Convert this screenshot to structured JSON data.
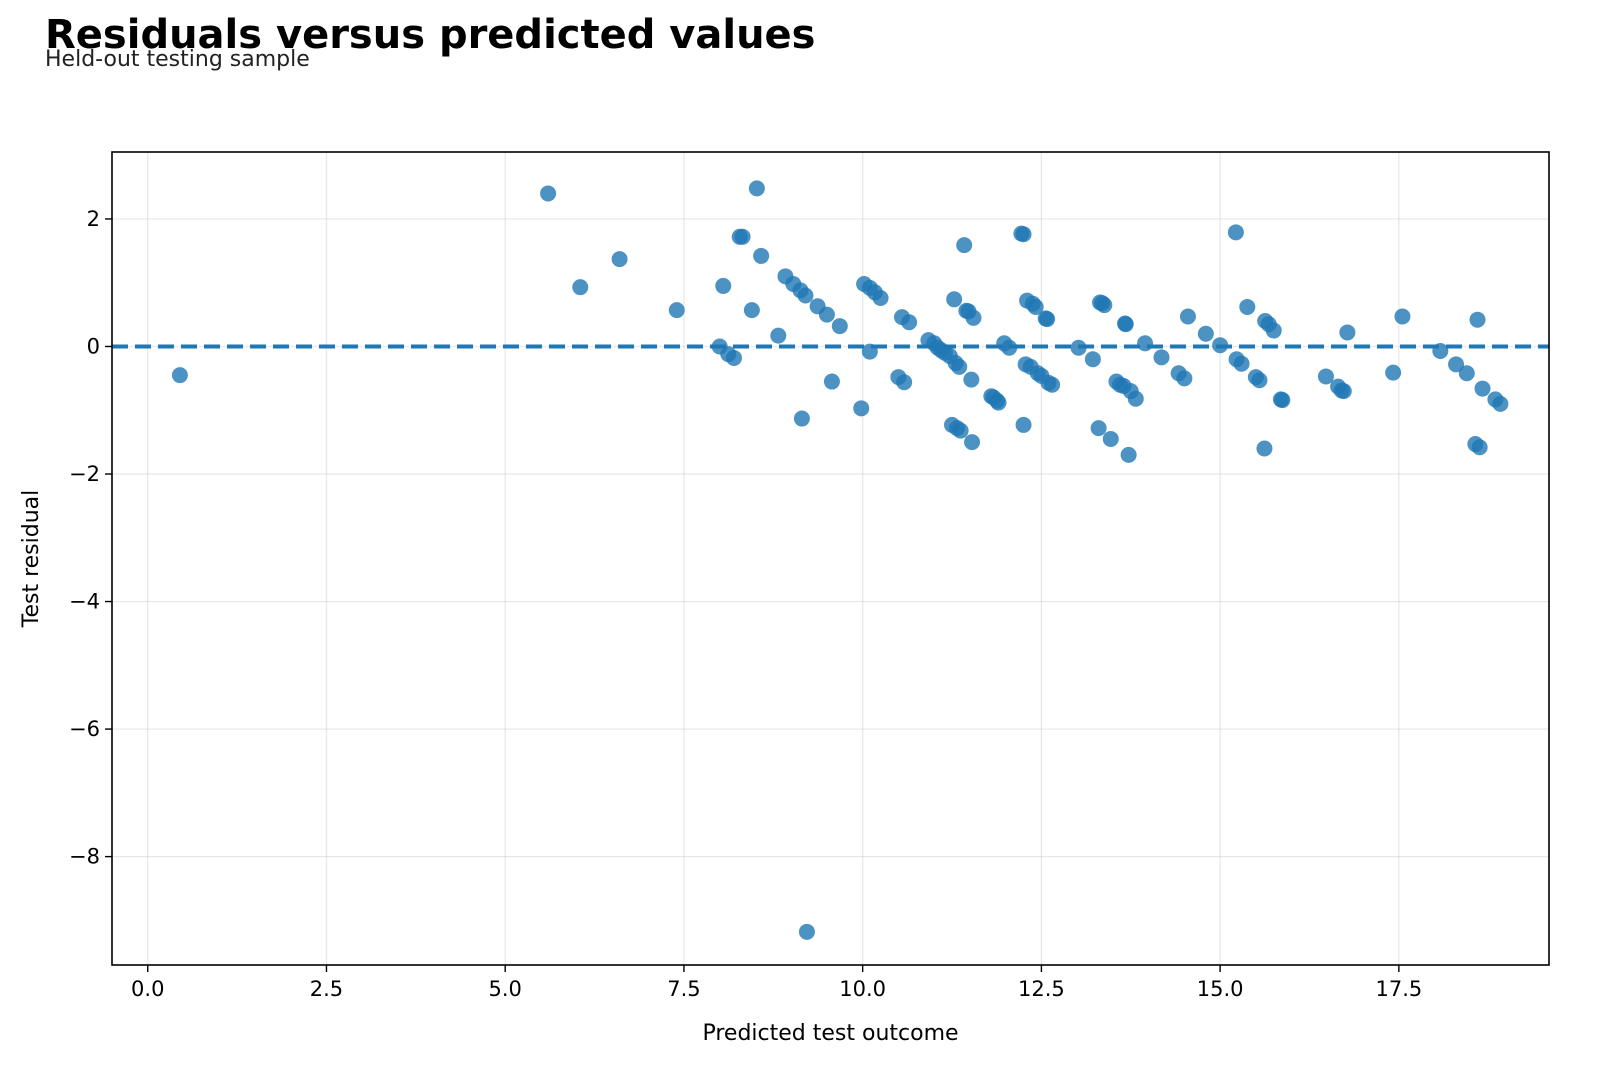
{
  "chart_data": {
    "type": "scatter",
    "title": "Residuals versus predicted values",
    "subtitle": "Held-out testing sample",
    "xlabel": "Predicted test outcome",
    "ylabel": "Test residual",
    "xlim": [
      -0.5,
      19.6
    ],
    "ylim": [
      -9.7,
      3.05
    ],
    "xticks": [
      0.0,
      2.5,
      5.0,
      7.5,
      10.0,
      12.5,
      15.0,
      17.5
    ],
    "xtick_labels": [
      "0.0",
      "2.5",
      "5.0",
      "7.5",
      "10.0",
      "12.5",
      "15.0",
      "17.5"
    ],
    "yticks": [
      -8,
      -6,
      -4,
      -2,
      0,
      2
    ],
    "ytick_labels": [
      "−8",
      "−6",
      "−4",
      "−2",
      "0",
      "2"
    ],
    "grid": true,
    "reference_line": {
      "y": 0,
      "style": "dashed"
    },
    "colors": {
      "points": "#1f77b4",
      "reference_line": "#1f77b4"
    },
    "points": [
      [
        0.45,
        -0.45
      ],
      [
        5.6,
        2.4
      ],
      [
        6.05,
        0.93
      ],
      [
        6.6,
        1.37
      ],
      [
        7.4,
        0.57
      ],
      [
        8.0,
        0.0
      ],
      [
        8.05,
        0.95
      ],
      [
        8.12,
        -0.12
      ],
      [
        8.2,
        -0.18
      ],
      [
        8.28,
        1.72
      ],
      [
        8.32,
        1.72
      ],
      [
        8.45,
        0.57
      ],
      [
        8.52,
        2.48
      ],
      [
        8.58,
        1.42
      ],
      [
        8.82,
        0.17
      ],
      [
        8.92,
        1.1
      ],
      [
        9.03,
        0.98
      ],
      [
        9.13,
        0.88
      ],
      [
        9.15,
        -1.13
      ],
      [
        9.2,
        0.8
      ],
      [
        9.22,
        -9.18
      ],
      [
        9.37,
        0.63
      ],
      [
        9.5,
        0.5
      ],
      [
        9.57,
        -0.55
      ],
      [
        9.68,
        0.32
      ],
      [
        9.98,
        -0.97
      ],
      [
        10.02,
        0.98
      ],
      [
        10.1,
        0.92
      ],
      [
        10.1,
        -0.08
      ],
      [
        10.17,
        0.85
      ],
      [
        10.25,
        0.76
      ],
      [
        10.5,
        -0.48
      ],
      [
        10.55,
        0.46
      ],
      [
        10.58,
        -0.56
      ],
      [
        10.65,
        0.38
      ],
      [
        10.92,
        0.1
      ],
      [
        11.0,
        0.05
      ],
      [
        11.05,
        -0.02
      ],
      [
        11.1,
        -0.06
      ],
      [
        11.15,
        -0.1
      ],
      [
        11.22,
        -0.15
      ],
      [
        11.25,
        -1.23
      ],
      [
        11.28,
        0.74
      ],
      [
        11.3,
        -0.26
      ],
      [
        11.32,
        -1.28
      ],
      [
        11.35,
        -0.32
      ],
      [
        11.37,
        -1.32
      ],
      [
        11.42,
        1.59
      ],
      [
        11.45,
        0.56
      ],
      [
        11.48,
        0.55
      ],
      [
        11.52,
        -0.52
      ],
      [
        11.53,
        -1.5
      ],
      [
        11.55,
        0.45
      ],
      [
        11.8,
        -0.78
      ],
      [
        11.83,
        -0.8
      ],
      [
        11.88,
        -0.85
      ],
      [
        11.9,
        -0.88
      ],
      [
        11.98,
        0.05
      ],
      [
        12.05,
        -0.02
      ],
      [
        12.22,
        1.77
      ],
      [
        12.25,
        1.76
      ],
      [
        12.25,
        -1.23
      ],
      [
        12.28,
        -0.28
      ],
      [
        12.3,
        0.72
      ],
      [
        12.35,
        -0.32
      ],
      [
        12.38,
        0.67
      ],
      [
        12.42,
        0.62
      ],
      [
        12.45,
        -0.42
      ],
      [
        12.5,
        -0.46
      ],
      [
        12.56,
        0.44
      ],
      [
        12.58,
        0.43
      ],
      [
        12.6,
        -0.57
      ],
      [
        12.65,
        -0.6
      ],
      [
        13.02,
        -0.02
      ],
      [
        13.22,
        -0.2
      ],
      [
        13.3,
        -1.28
      ],
      [
        13.32,
        0.69
      ],
      [
        13.35,
        0.68
      ],
      [
        13.38,
        0.65
      ],
      [
        13.47,
        -1.45
      ],
      [
        13.55,
        -0.55
      ],
      [
        13.6,
        -0.6
      ],
      [
        13.65,
        -0.62
      ],
      [
        13.67,
        0.36
      ],
      [
        13.68,
        0.35
      ],
      [
        13.72,
        -1.7
      ],
      [
        13.75,
        -0.7
      ],
      [
        13.82,
        -0.82
      ],
      [
        13.95,
        0.05
      ],
      [
        14.18,
        -0.17
      ],
      [
        14.42,
        -0.42
      ],
      [
        14.5,
        -0.5
      ],
      [
        14.55,
        0.47
      ],
      [
        14.8,
        0.2
      ],
      [
        15.0,
        0.02
      ],
      [
        15.22,
        1.79
      ],
      [
        15.23,
        -0.2
      ],
      [
        15.3,
        -0.27
      ],
      [
        15.38,
        0.62
      ],
      [
        15.5,
        -0.48
      ],
      [
        15.55,
        -0.53
      ],
      [
        15.62,
        -1.6
      ],
      [
        15.63,
        0.4
      ],
      [
        15.68,
        0.35
      ],
      [
        15.75,
        0.25
      ],
      [
        15.85,
        -0.83
      ],
      [
        15.87,
        -0.84
      ],
      [
        16.48,
        -0.47
      ],
      [
        16.65,
        -0.63
      ],
      [
        16.7,
        -0.69
      ],
      [
        16.73,
        -0.7
      ],
      [
        16.78,
        0.22
      ],
      [
        17.42,
        -0.41
      ],
      [
        17.55,
        0.47
      ],
      [
        18.08,
        -0.07
      ],
      [
        18.3,
        -0.28
      ],
      [
        18.45,
        -0.42
      ],
      [
        18.57,
        -1.53
      ],
      [
        18.6,
        0.42
      ],
      [
        18.63,
        -1.58
      ],
      [
        18.67,
        -0.66
      ],
      [
        18.85,
        -0.83
      ],
      [
        18.92,
        -0.9
      ]
    ]
  }
}
